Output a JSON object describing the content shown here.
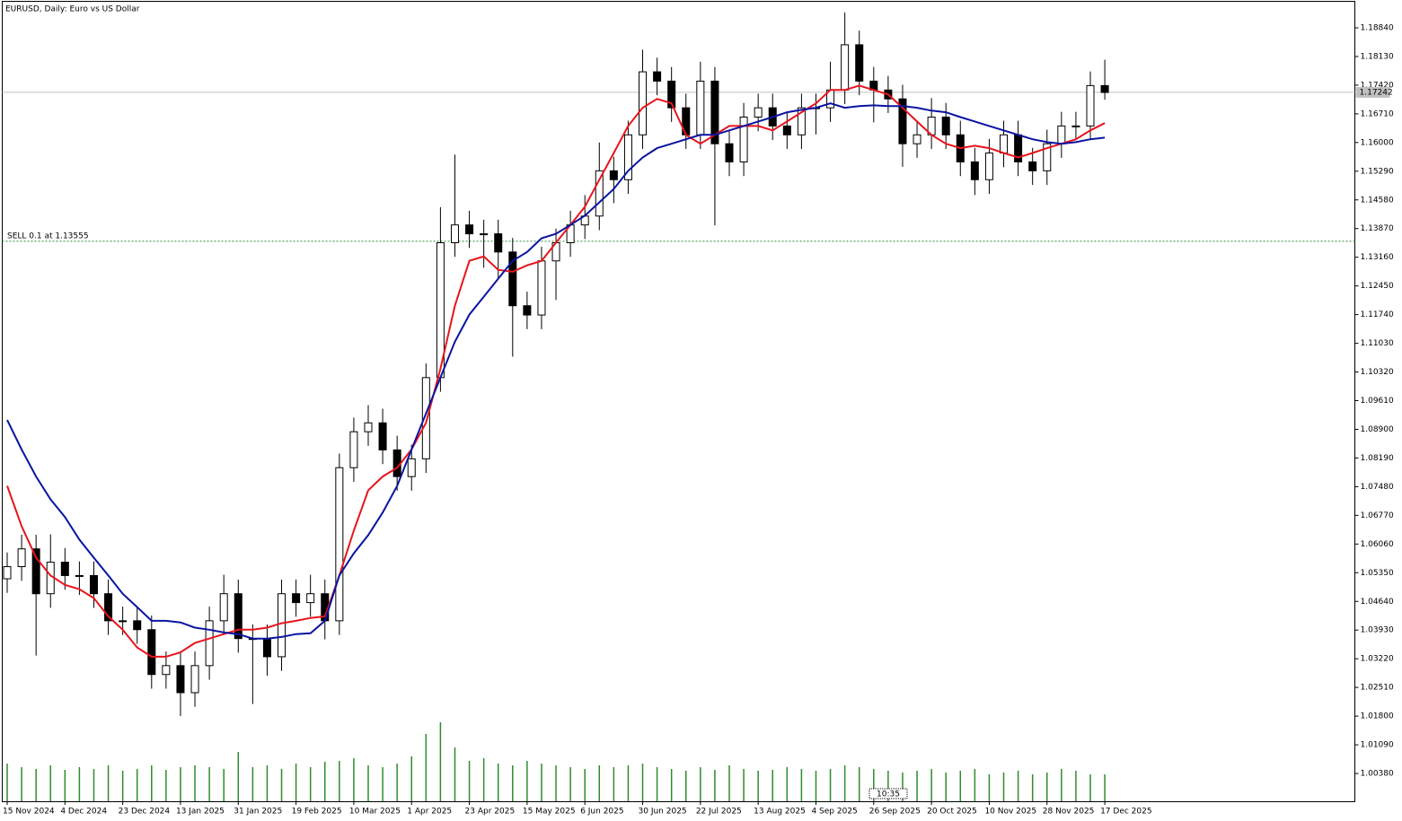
{
  "chart_data": {
    "type": "candlestick",
    "title": "EURUSD, Daily:  Euro vs US Dollar",
    "ylim": [
      0.99692,
      1.19484
    ],
    "yticks": [
      {
        "value": 1.1884,
        "label": "1.18840"
      },
      {
        "value": 1.1813,
        "label": "1.18130"
      },
      {
        "value": 1.1742,
        "label": "1.17420"
      },
      {
        "value": 1.1671,
        "label": "1.16710"
      },
      {
        "value": 1.16,
        "label": "1.16000"
      },
      {
        "value": 1.1529,
        "label": "1.15290"
      },
      {
        "value": 1.1458,
        "label": "1.14580"
      },
      {
        "value": 1.1387,
        "label": "1.13870"
      },
      {
        "value": 1.1316,
        "label": "1.13160"
      },
      {
        "value": 1.1245,
        "label": "1.12450"
      },
      {
        "value": 1.1174,
        "label": "1.11740"
      },
      {
        "value": 1.1103,
        "label": "1.11030"
      },
      {
        "value": 1.1032,
        "label": "1.10320"
      },
      {
        "value": 1.0961,
        "label": "1.09610"
      },
      {
        "value": 1.089,
        "label": "1.08900"
      },
      {
        "value": 1.0819,
        "label": "1.08190"
      },
      {
        "value": 1.0748,
        "label": "1.07480"
      },
      {
        "value": 1.0677,
        "label": "1.06770"
      },
      {
        "value": 1.0606,
        "label": "1.06060"
      },
      {
        "value": 1.0535,
        "label": "1.05350"
      },
      {
        "value": 1.0464,
        "label": "1.04640"
      },
      {
        "value": 1.0393,
        "label": "1.03930"
      },
      {
        "value": 1.0322,
        "label": "1.03220"
      },
      {
        "value": 1.0251,
        "label": "1.02510"
      },
      {
        "value": 1.018,
        "label": "1.01800"
      },
      {
        "value": 1.0109,
        "label": "1.01090"
      },
      {
        "value": 1.0038,
        "label": "1.00380"
      }
    ],
    "categories": [
      "15 Nov 2024",
      null,
      null,
      null,
      "4 Dec 2024",
      null,
      null,
      null,
      "23 Dec 2024",
      null,
      null,
      null,
      "13 Jan 2025",
      null,
      null,
      null,
      "31 Jan 2025",
      null,
      null,
      null,
      "19 Feb 2025",
      null,
      null,
      null,
      "10 Mar 2025",
      null,
      null,
      null,
      "1 Apr 2025",
      null,
      null,
      null,
      "23 Apr 2025",
      null,
      null,
      null,
      "15 May 2025",
      null,
      null,
      null,
      "6 Jun 2025",
      null,
      null,
      null,
      "30 Jun 2025",
      null,
      null,
      null,
      "22 Jul 2025",
      null,
      null,
      null,
      "13 Aug 2025",
      null,
      null,
      null,
      "4 Sep 2025",
      null,
      null,
      null,
      "26 Sep 2025",
      null,
      null,
      null,
      "20 Oct 2025",
      null,
      null,
      null,
      "10 Nov 2025",
      null,
      null,
      null,
      "28 Nov 2025",
      null,
      null,
      null,
      "17 Dec 2025"
    ],
    "candles": {
      "open": [
        1.052,
        1.055,
        1.0594,
        1.0483,
        1.0561,
        1.0528,
        1.0528,
        1.0483,
        1.0416,
        1.0416,
        1.0394,
        1.0283,
        1.0305,
        1.0238,
        1.0305,
        1.0416,
        1.0483,
        1.0372,
        1.0372,
        1.0327,
        1.0483,
        1.0461,
        1.0483,
        1.0416,
        1.0795,
        1.0884,
        1.0906,
        1.0839,
        1.0773,
        1.0817,
        1.1018,
        1.1352,
        1.1396,
        1.1374,
        1.1374,
        1.1329,
        1.1196,
        1.1173,
        1.1307,
        1.1352,
        1.1396,
        1.1418,
        1.153,
        1.1508,
        1.1619,
        1.1775,
        1.1752,
        1.1686,
        1.1619,
        1.1752,
        1.1597,
        1.1552,
        1.1663,
        1.1686,
        1.1641,
        1.1619,
        1.1686,
        1.1686,
        1.173,
        1.1842,
        1.1752,
        1.173,
        1.1708,
        1.1597,
        1.1619,
        1.1663,
        1.1619,
        1.1552,
        1.1508,
        1.1574,
        1.1619,
        1.1552,
        1.153,
        1.1597,
        1.1641,
        1.1641,
        1.1741
      ],
      "high": [
        1.0585,
        1.0629,
        1.0629,
        1.063,
        1.0596,
        1.0563,
        1.0563,
        1.0518,
        1.0451,
        1.0451,
        1.0429,
        1.034,
        1.034,
        1.034,
        1.0451,
        1.053,
        1.0518,
        1.0407,
        1.0407,
        1.0518,
        1.0518,
        1.053,
        1.0518,
        1.083,
        1.0919,
        1.095,
        1.0941,
        1.0874,
        1.0852,
        1.1053,
        1.144,
        1.157,
        1.1431,
        1.1409,
        1.1409,
        1.1364,
        1.1231,
        1.1342,
        1.1387,
        1.1431,
        1.147,
        1.16,
        1.1565,
        1.1654,
        1.183,
        1.181,
        1.1787,
        1.1721,
        1.18,
        1.1787,
        1.1632,
        1.1698,
        1.1721,
        1.1721,
        1.1676,
        1.1721,
        1.1721,
        1.18,
        1.1922,
        1.1877,
        1.1787,
        1.1765,
        1.1743,
        1.1654,
        1.171,
        1.1698,
        1.1654,
        1.1587,
        1.1609,
        1.1654,
        1.1654,
        1.1587,
        1.1632,
        1.1676,
        1.1676,
        1.1776,
        1.1805
      ],
      "low": [
        1.0485,
        1.0515,
        1.033,
        1.0448,
        1.0493,
        1.048,
        1.0448,
        1.0381,
        1.0381,
        1.0359,
        1.0248,
        1.0248,
        1.018,
        1.0203,
        1.027,
        1.0381,
        1.0337,
        1.021,
        1.028,
        1.0292,
        1.0426,
        1.0426,
        1.037,
        1.0381,
        1.076,
        1.0849,
        1.0804,
        1.0738,
        1.0738,
        1.0782,
        1.0983,
        1.1317,
        1.1339,
        1.129,
        1.1265,
        1.107,
        1.1138,
        1.1138,
        1.121,
        1.1317,
        1.1361,
        1.1383,
        1.145,
        1.1473,
        1.1584,
        1.1717,
        1.1651,
        1.1584,
        1.1584,
        1.1395,
        1.1517,
        1.1517,
        1.1628,
        1.1606,
        1.1584,
        1.1584,
        1.162,
        1.1651,
        1.1695,
        1.1717,
        1.165,
        1.1673,
        1.154,
        1.1562,
        1.1584,
        1.1584,
        1.1517,
        1.147,
        1.1473,
        1.1539,
        1.1517,
        1.1495,
        1.1495,
        1.1562,
        1.1606,
        1.1606,
        1.1706
      ],
      "close": [
        1.055,
        1.0594,
        1.0483,
        1.0561,
        1.0528,
        1.0528,
        1.0483,
        1.0416,
        1.0416,
        1.0394,
        1.0283,
        1.0305,
        1.0238,
        1.0305,
        1.0416,
        1.0483,
        1.0372,
        1.0372,
        1.0327,
        1.0483,
        1.0461,
        1.0483,
        1.0416,
        1.0795,
        1.0884,
        1.0906,
        1.0839,
        1.0773,
        1.0817,
        1.1018,
        1.1352,
        1.1396,
        1.1374,
        1.1374,
        1.1329,
        1.1196,
        1.1173,
        1.1307,
        1.1352,
        1.1396,
        1.1418,
        1.153,
        1.1508,
        1.1619,
        1.1775,
        1.1752,
        1.1686,
        1.1619,
        1.1752,
        1.1597,
        1.1552,
        1.1663,
        1.1686,
        1.1641,
        1.1619,
        1.1686,
        1.1686,
        1.173,
        1.1842,
        1.1752,
        1.173,
        1.1708,
        1.1597,
        1.1619,
        1.1663,
        1.1619,
        1.1552,
        1.1508,
        1.1574,
        1.1619,
        1.1552,
        1.153,
        1.1597,
        1.1641,
        1.1641,
        1.1741,
        1.1724
      ]
    },
    "series": [
      {
        "color": "#e8141c",
        "values": [
          1.075,
          1.065,
          1.0572,
          1.0528,
          1.0505,
          1.0494,
          1.0472,
          1.0427,
          1.0394,
          1.035,
          1.0327,
          1.0327,
          1.0338,
          1.0361,
          1.0372,
          1.0383,
          1.0394,
          1.0394,
          1.0399,
          1.041,
          1.0416,
          1.0423,
          1.0427,
          1.0528,
          1.0639,
          1.0739,
          1.0773,
          1.0795,
          1.084,
          1.0906,
          1.104,
          1.1196,
          1.1307,
          1.1318,
          1.1285,
          1.128,
          1.1296,
          1.1307,
          1.1352,
          1.1396,
          1.1441,
          1.1508,
          1.1574,
          1.1641,
          1.1686,
          1.1708,
          1.1697,
          1.1619,
          1.1597,
          1.1619,
          1.1641,
          1.1641,
          1.1641,
          1.163,
          1.1652,
          1.1675,
          1.1697,
          1.173,
          1.173,
          1.1741,
          1.173,
          1.1719,
          1.1686,
          1.1652,
          1.1619,
          1.1597,
          1.1586,
          1.1592,
          1.1586,
          1.1574,
          1.1563,
          1.1574,
          1.1586,
          1.1597,
          1.1608,
          1.163,
          1.1648
        ]
      },
      {
        "color": "#0a14a0",
        "values": [
          1.0913,
          1.084,
          1.0773,
          1.0717,
          1.0673,
          1.0617,
          1.0572,
          1.0528,
          1.0483,
          1.045,
          1.0416,
          1.0416,
          1.0412,
          1.0399,
          1.0394,
          1.0387,
          1.0383,
          1.0372,
          1.0372,
          1.0376,
          1.0383,
          1.0385,
          1.0416,
          1.0528,
          1.0583,
          1.0628,
          1.0684,
          1.075,
          1.084,
          1.0929,
          1.1018,
          1.1107,
          1.1174,
          1.1218,
          1.1263,
          1.1307,
          1.1329,
          1.1363,
          1.1374,
          1.1396,
          1.1419,
          1.1452,
          1.1485,
          1.153,
          1.1563,
          1.1586,
          1.1597,
          1.1608,
          1.1619,
          1.1619,
          1.163,
          1.1641,
          1.1652,
          1.1663,
          1.1675,
          1.1681,
          1.1686,
          1.1697,
          1.1686,
          1.169,
          1.1692,
          1.169,
          1.169,
          1.1686,
          1.1679,
          1.1675,
          1.1663,
          1.1652,
          1.1641,
          1.163,
          1.1619,
          1.1608,
          1.1601,
          1.1597,
          1.1601,
          1.1608,
          1.1612
        ]
      }
    ],
    "volumes": [
      42,
      38,
      36,
      40,
      35,
      38,
      36,
      40,
      34,
      36,
      40,
      35,
      38,
      40,
      38,
      36,
      55,
      38,
      40,
      36,
      42,
      38,
      44,
      45,
      48,
      40,
      38,
      42,
      50,
      75,
      88,
      60,
      45,
      48,
      42,
      40,
      45,
      42,
      40,
      38,
      36,
      40,
      38,
      40,
      42,
      38,
      36,
      34,
      38,
      35,
      40,
      36,
      34,
      35,
      38,
      36,
      34,
      36,
      40,
      38,
      36,
      34,
      32,
      34,
      36,
      32,
      34,
      36,
      30,
      32,
      34,
      30,
      32,
      36,
      34,
      30,
      30
    ],
    "volume_lim": [
      0,
      100
    ],
    "volume_color": "#2e8b2e",
    "bid": {
      "value": 1.17242,
      "label": "1.17242"
    },
    "order": {
      "value": 1.13555,
      "label": "SELL 0.1 at 1.13555"
    },
    "time_label": "10:35"
  }
}
